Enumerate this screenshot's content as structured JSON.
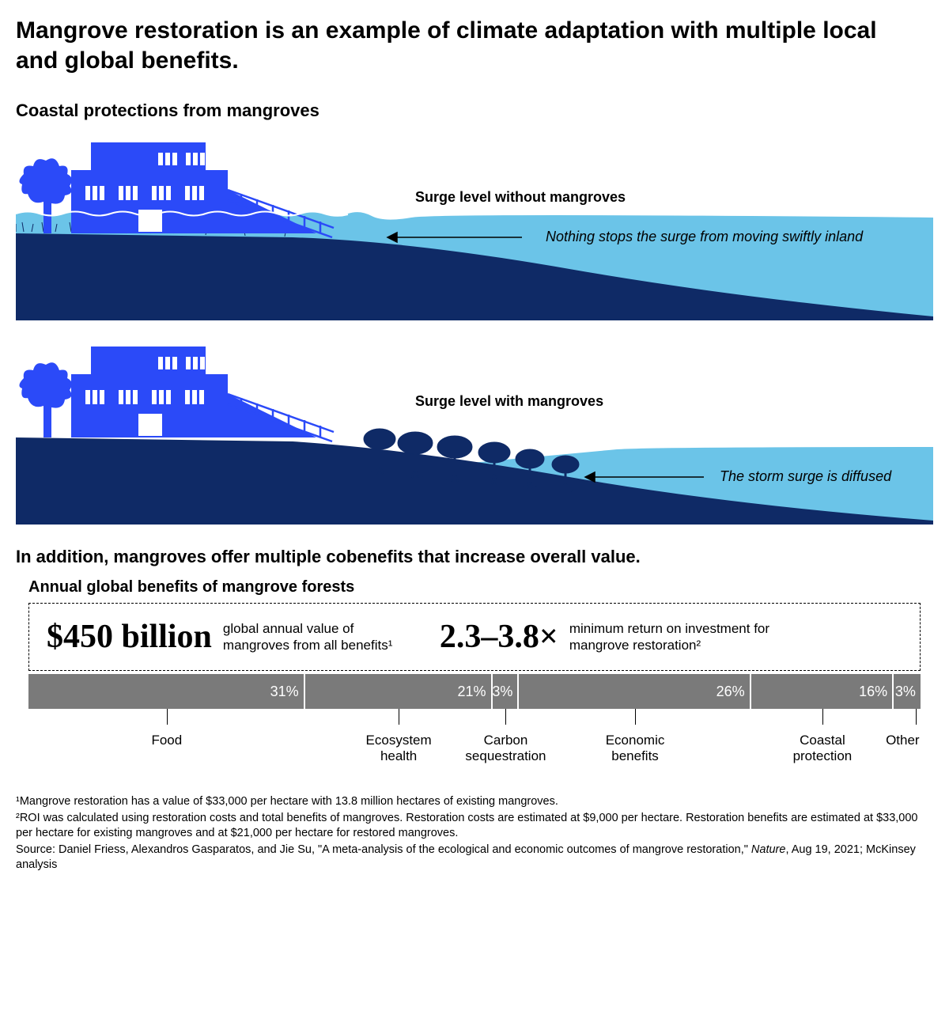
{
  "title": "Mangrove restoration is an example of climate adaptation with multiple local and global benefits.",
  "section1_title": "Coastal protections from mangroves",
  "colors": {
    "house": "#2b4af8",
    "land": "#0f2a66",
    "water": "#6bc4e8",
    "bar": "#7a7a7a",
    "white": "#ffffff",
    "black": "#000000"
  },
  "diagram1": {
    "label": "Surge level without mangroves",
    "caption": "Nothing stops the surge from moving swiftly inland"
  },
  "diagram2": {
    "label": "Surge level with mangroves",
    "caption": "The storm surge is diffused"
  },
  "cobenefits_intro": "In addition, mangroves offer multiple cobenefits that increase overall value.",
  "chart_title": "Annual global benefits of mangrove forests",
  "stat1_num": "$450 billion",
  "stat1_desc": "global annual value of mangroves from all benefits¹",
  "stat2_num": "2.3–3.8×",
  "stat2_desc": "minimum return on investment for mangrove restoration²",
  "segments": [
    {
      "label": "Food",
      "pct": 31
    },
    {
      "label": "Ecosystem health",
      "pct": 21
    },
    {
      "label": "Carbon sequestration",
      "pct": 3
    },
    {
      "label": "Economic benefits",
      "pct": 26
    },
    {
      "label": "Coastal protection",
      "pct": 16
    },
    {
      "label": "Other",
      "pct": 3
    }
  ],
  "footnote1": "¹Mangrove restoration has a value of $33,000 per hectare with 13.8 million hectares of existing mangroves.",
  "footnote2": "²ROI was calculated using restoration costs and total benefits of mangroves. Restoration costs are estimated at $9,000 per hectare. Restoration benefits are estimated at $33,000 per hectare for existing mangroves and at $21,000 per hectare for restored mangroves.",
  "footnote3_a": "Source: Daniel Friess, Alexandros Gasparatos, and Jie Su, \"A meta-analysis of the ecological and economic outcomes of mangrove restoration,\" ",
  "footnote3_i": "Nature",
  "footnote3_b": ", Aug 19, 2021; McKinsey analysis"
}
